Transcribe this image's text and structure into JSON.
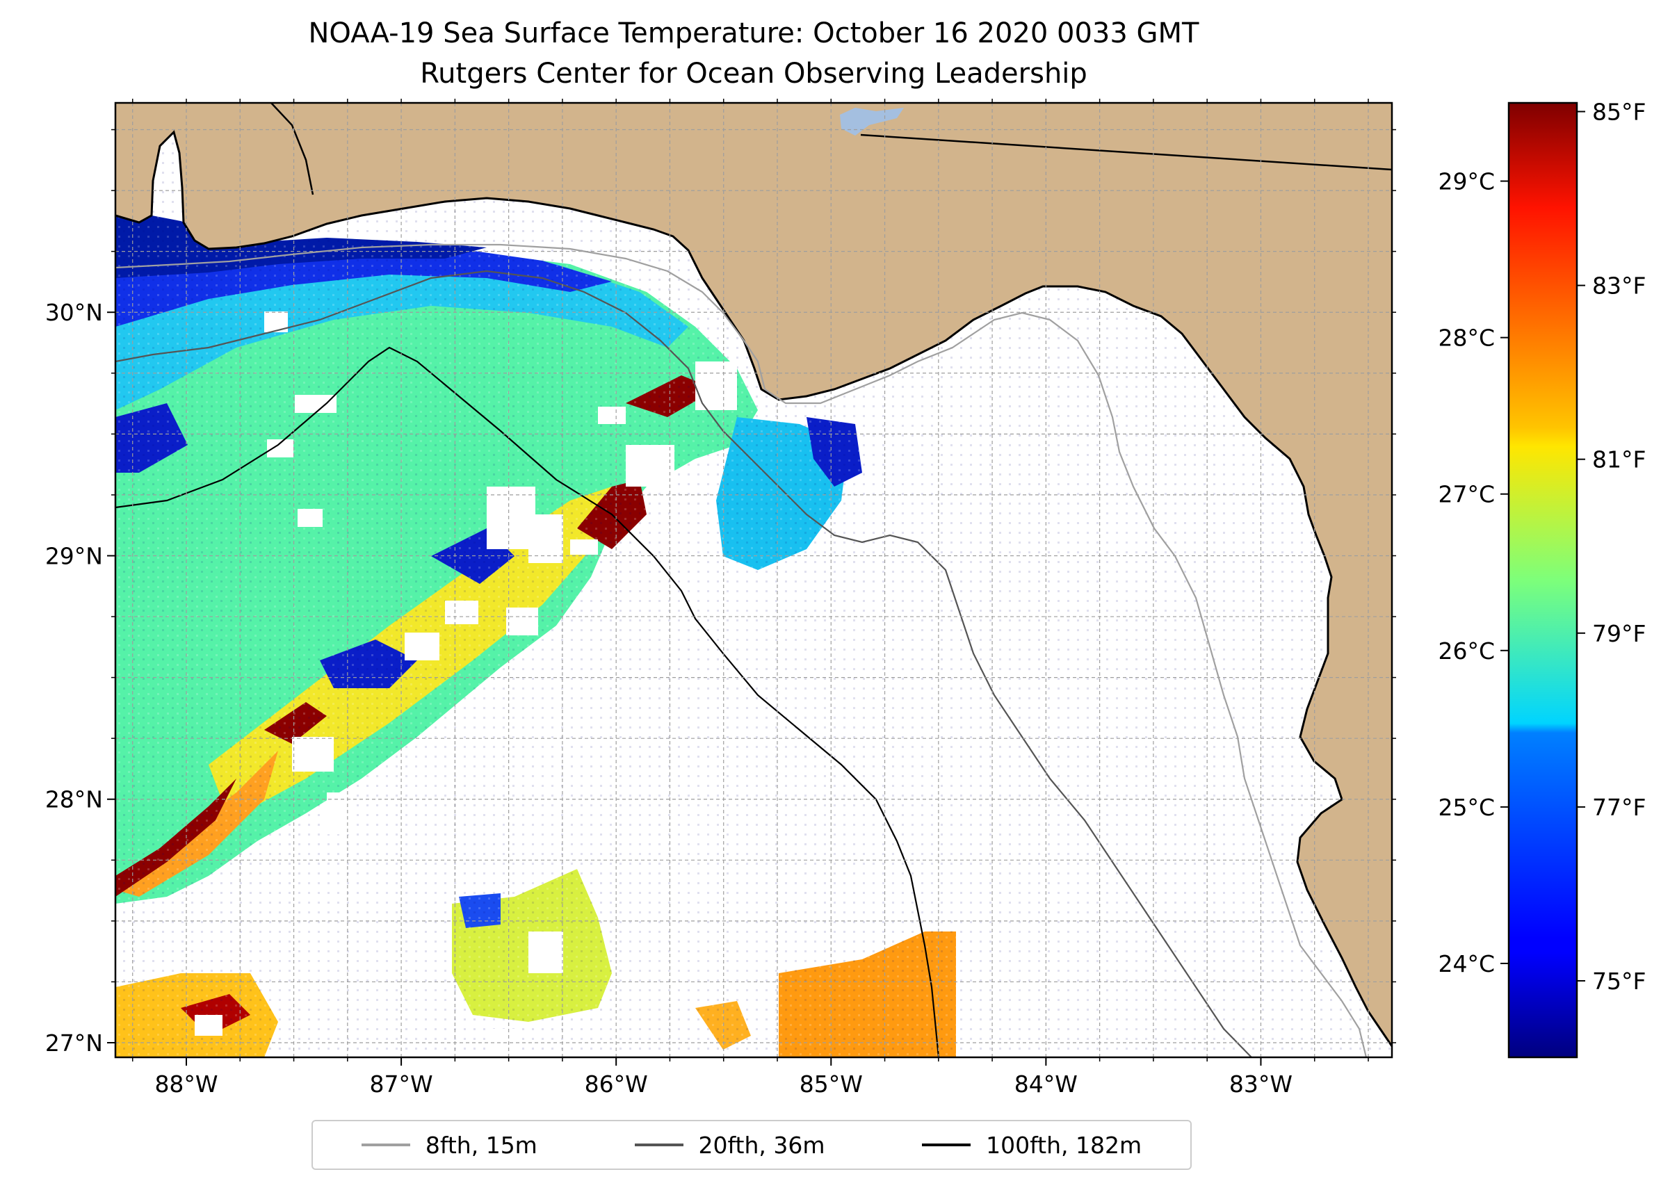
{
  "title": "NOAA-19 Sea Surface Temperature: October 16 2020 0033 GMT",
  "subtitle": "Rutgers Center for Ocean Observing Leadership",
  "map": {
    "extent": {
      "lon_min": -88.33,
      "lon_max": -82.39,
      "lat_min": 26.94,
      "lat_max": 30.86
    },
    "lon_ticks": [
      {
        "value": -88,
        "label": "88°W"
      },
      {
        "value": -87,
        "label": "87°W"
      },
      {
        "value": -86,
        "label": "86°W"
      },
      {
        "value": -85,
        "label": "85°W"
      },
      {
        "value": -84,
        "label": "84°W"
      },
      {
        "value": -83,
        "label": "83°W"
      }
    ],
    "lat_ticks": [
      {
        "value": 27,
        "label": "27°N"
      },
      {
        "value": 28,
        "label": "28°N"
      },
      {
        "value": 29,
        "label": "29°N"
      },
      {
        "value": 30,
        "label": "30°N"
      }
    ],
    "land_color": "#d2b48c",
    "grid": true
  },
  "colorbar": {
    "colormap": "jet",
    "range_c": [
      23.4,
      29.5
    ],
    "celsius_ticks": [
      {
        "value": 24,
        "label": "24°C"
      },
      {
        "value": 25,
        "label": "25°C"
      },
      {
        "value": 26,
        "label": "26°C"
      },
      {
        "value": 27,
        "label": "27°C"
      },
      {
        "value": 28,
        "label": "28°C"
      },
      {
        "value": 29,
        "label": "29°C"
      }
    ],
    "fahrenheit_ticks": [
      {
        "value": 75,
        "label": "75°F"
      },
      {
        "value": 77,
        "label": "77°F"
      },
      {
        "value": 79,
        "label": "79°F"
      },
      {
        "value": 81,
        "label": "81°F"
      },
      {
        "value": 83,
        "label": "83°F"
      },
      {
        "value": 85,
        "label": "85°F"
      }
    ]
  },
  "legend": [
    {
      "label": "8fth, 15m",
      "color": "#a0a0a0"
    },
    {
      "label": "20fth, 36m",
      "color": "#555555"
    },
    {
      "label": "100fth, 182m",
      "color": "#000000"
    }
  ]
}
